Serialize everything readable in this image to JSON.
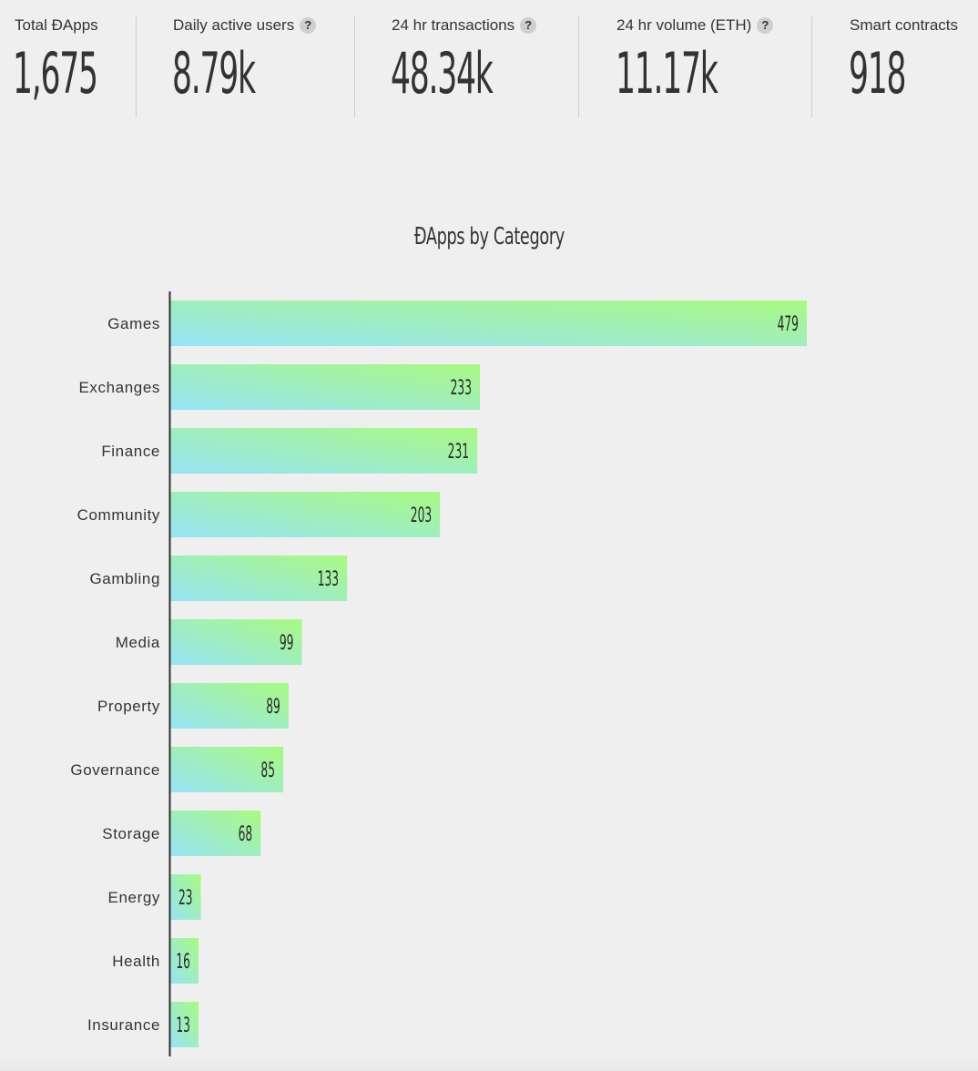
{
  "stats": {
    "total_dapps": {
      "label": "Total ĐApps",
      "value": "1,675"
    },
    "daily_active_users": {
      "label": "Daily active users",
      "value": "8.79k",
      "help": "?"
    },
    "tx_24h": {
      "label": "24 hr transactions",
      "value": "48.34k",
      "help": "?"
    },
    "volume_24h": {
      "label": "24 hr volume (ETH)",
      "value": "11.17k",
      "help": "?"
    },
    "smart_contracts": {
      "label": "Smart contracts",
      "value": "918"
    }
  },
  "chart_data": {
    "type": "bar",
    "orientation": "horizontal",
    "title": "ĐApps by Category",
    "categories": [
      "Games",
      "Exchanges",
      "Finance",
      "Community",
      "Gambling",
      "Media",
      "Property",
      "Governance",
      "Storage",
      "Energy",
      "Health",
      "Insurance"
    ],
    "values": [
      479,
      233,
      231,
      203,
      133,
      99,
      89,
      85,
      68,
      23,
      16,
      13
    ],
    "xlim": [
      0,
      479
    ],
    "grid": false,
    "legend": "none",
    "gradient": {
      "start": "#97e3f7",
      "end": "#a9f982"
    },
    "axis_color": "#2f2f2f"
  }
}
